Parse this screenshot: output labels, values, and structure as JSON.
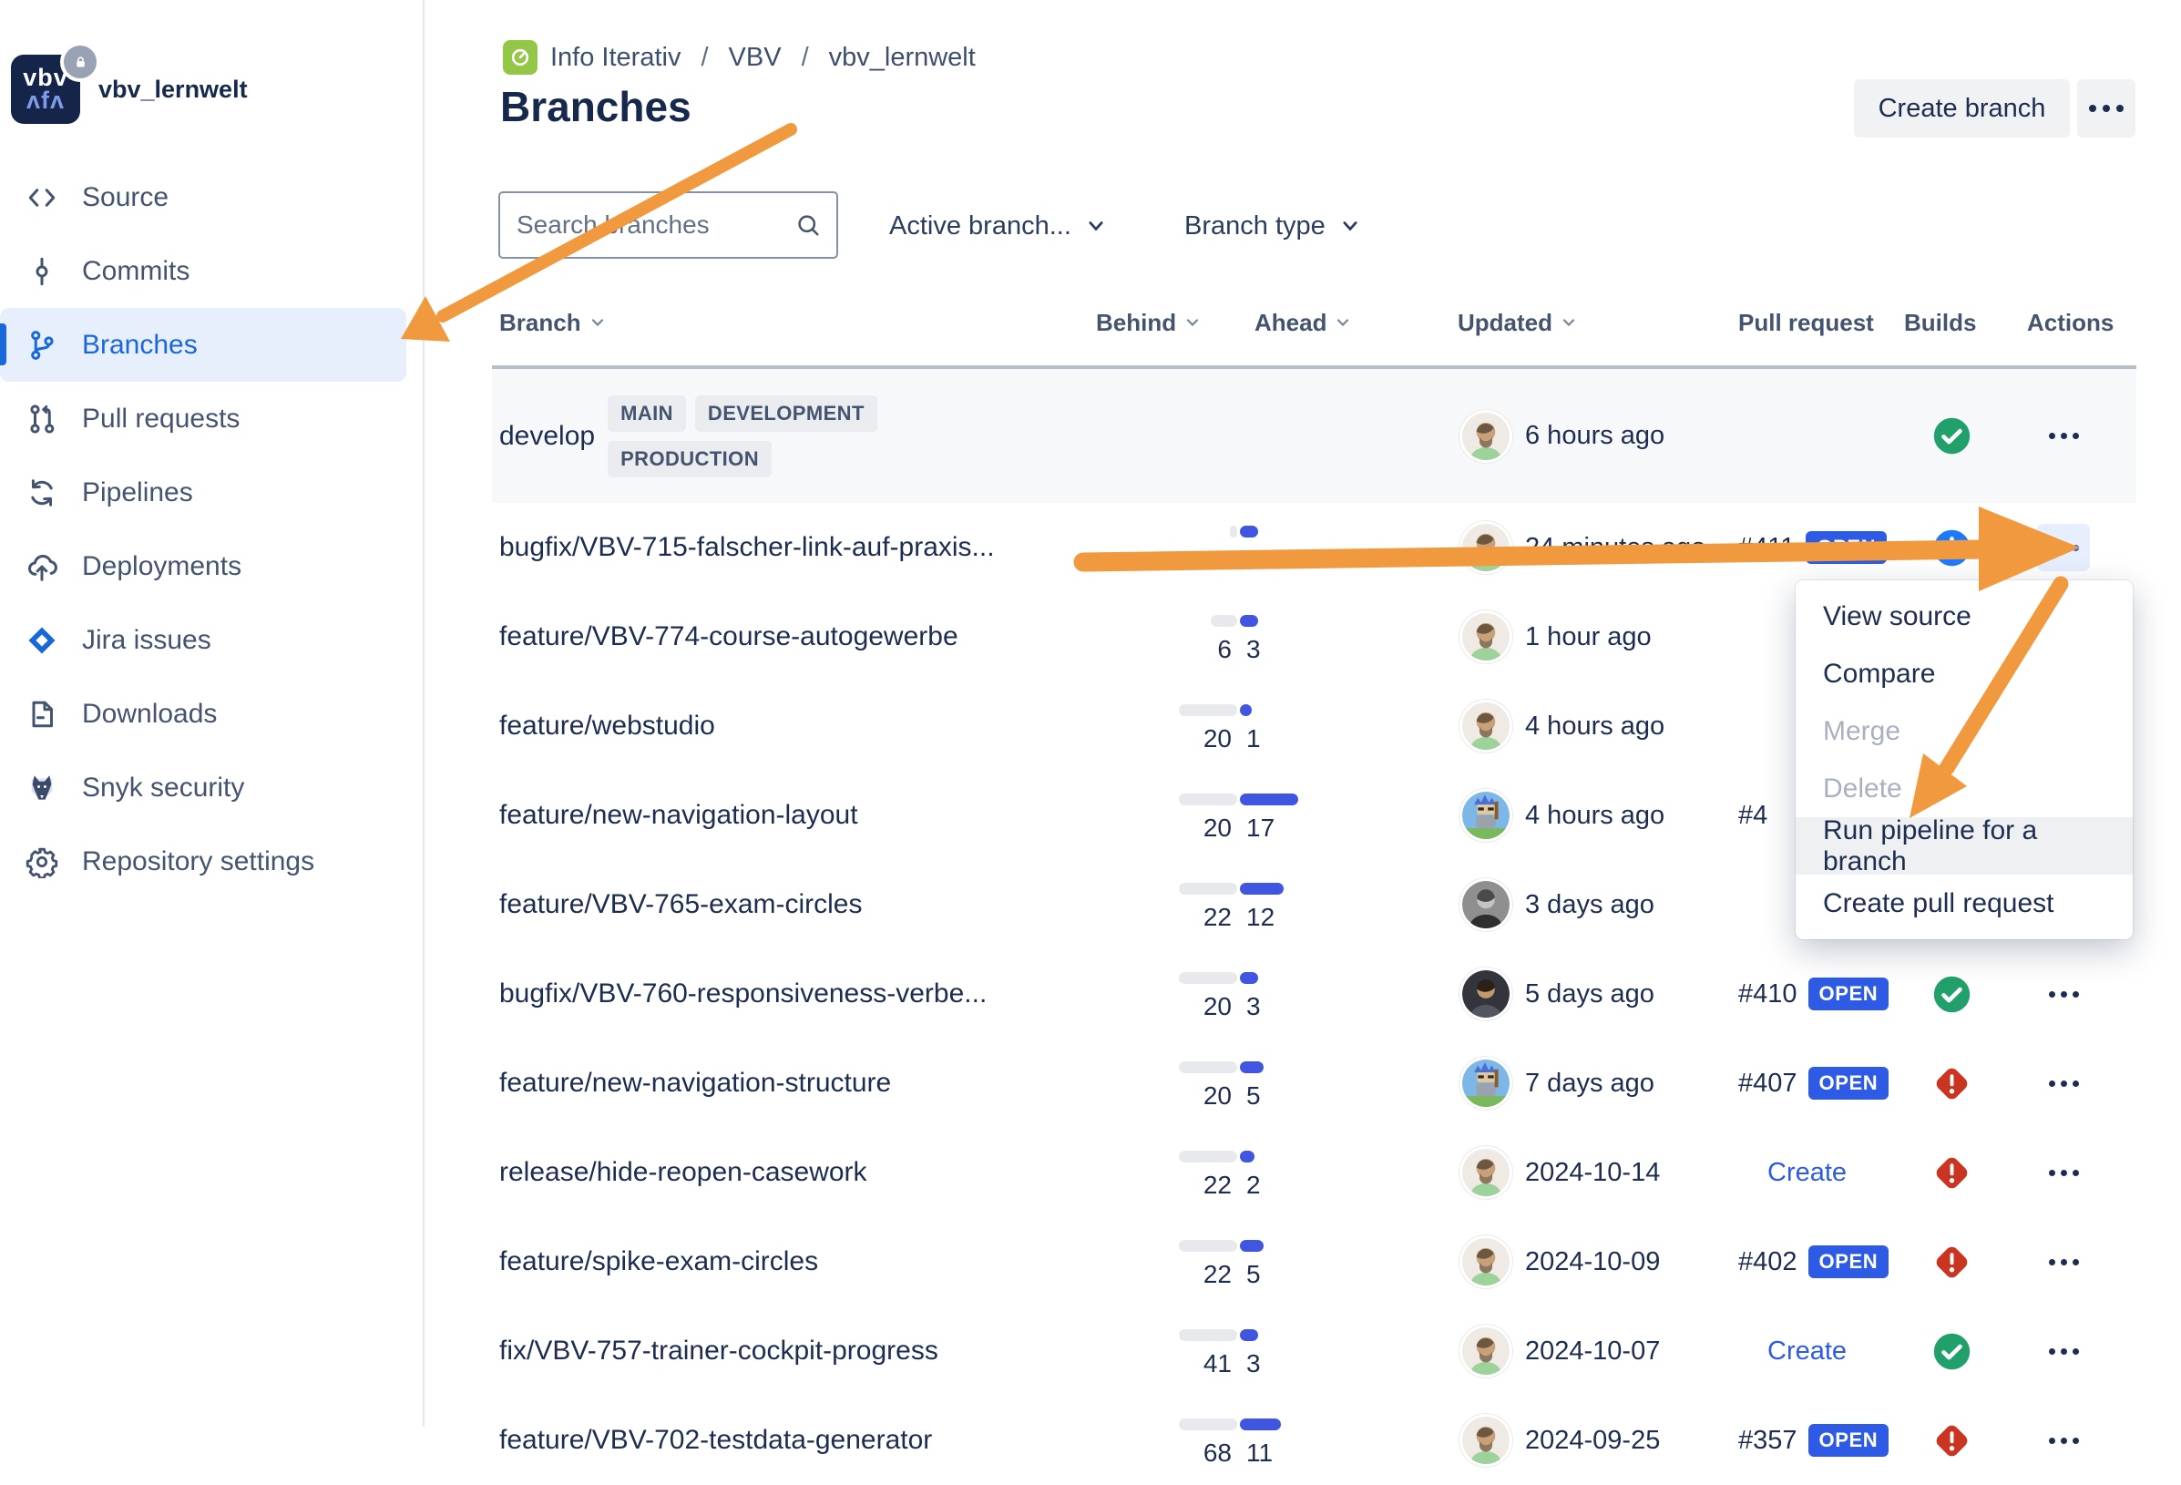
{
  "colors": {
    "selected_blue": "#1868DB",
    "open_badge_blue": "#2E5BE6",
    "success_green": "#22A06B",
    "error_red": "#CA3521",
    "inprogress_blue": "#1D7AFC",
    "annotation_orange": "#F0993E",
    "ahead_bar_blue": "#4156E0",
    "behind_bar_gray": "#E7E9ED",
    "project_avatar_green": "#94C748"
  },
  "sidebar": {
    "repo_name": "vbv_lernwelt",
    "logo": {
      "line1": "vbv",
      "line2": "ʌfʌ",
      "lock_icon": "lock-icon"
    },
    "items": [
      {
        "label": "Source",
        "icon": "source-icon",
        "selected": false
      },
      {
        "label": "Commits",
        "icon": "commits-icon",
        "selected": false
      },
      {
        "label": "Branches",
        "icon": "branches-icon",
        "selected": true
      },
      {
        "label": "Pull requests",
        "icon": "pull-requests-icon",
        "selected": false
      },
      {
        "label": "Pipelines",
        "icon": "pipelines-icon",
        "selected": false
      },
      {
        "label": "Deployments",
        "icon": "deployments-icon",
        "selected": false
      },
      {
        "label": "Jira issues",
        "icon": "jira-icon",
        "selected": false
      },
      {
        "label": "Downloads",
        "icon": "downloads-icon",
        "selected": false
      },
      {
        "label": "Snyk security",
        "icon": "snyk-icon",
        "selected": false
      },
      {
        "label": "Repository settings",
        "icon": "settings-icon",
        "selected": false
      }
    ]
  },
  "breadcrumb": {
    "items": [
      "Info Iterativ",
      "VBV",
      "vbv_lernwelt"
    ],
    "separator": "/"
  },
  "header": {
    "title": "Branches",
    "create_branch": "Create branch"
  },
  "filters": {
    "search_placeholder": "Search branches",
    "active_branches": "Active branch...",
    "branch_type": "Branch type"
  },
  "table": {
    "columns": [
      {
        "label": "Branch",
        "sortable": true
      },
      {
        "label": "Behind",
        "sortable": true
      },
      {
        "label": "Ahead",
        "sortable": true
      },
      {
        "label": "Updated",
        "sortable": true
      },
      {
        "label": "Pull request",
        "sortable": false
      },
      {
        "label": "Builds",
        "sortable": false
      },
      {
        "label": "Actions",
        "sortable": false
      }
    ],
    "develop": {
      "name": "develop",
      "badges": [
        "MAIN",
        "DEVELOPMENT",
        "PRODUCTION"
      ],
      "updated": "6 hours ago",
      "avatar": "man-beard",
      "build": "success"
    },
    "rows": [
      {
        "name": "bugfix/VBV-715-falscher-link-auf-praxis...",
        "behind": 0,
        "ahead": 3,
        "updated": "24 minutes ago",
        "avatar": "man-beard",
        "pr": {
          "style": "badge",
          "number": "#411",
          "status": "OPEN"
        },
        "build": "inprogress",
        "actions": "active"
      },
      {
        "name": "feature/VBV-774-course-autogewerbe",
        "behind": 6,
        "ahead": 3,
        "updated": "1 hour ago",
        "avatar": "man-beard",
        "pr": null,
        "build": null,
        "actions": null
      },
      {
        "name": "feature/webstudio",
        "behind": 20,
        "ahead": 1,
        "updated": "4 hours ago",
        "avatar": "man-beard",
        "pr": null,
        "build": null,
        "actions": null
      },
      {
        "name": "feature/new-navigation-layout",
        "behind": 20,
        "ahead": 17,
        "updated": "4 hours ago",
        "avatar": "pixel-knight",
        "pr": {
          "style": "partial",
          "number": "#4"
        },
        "build": null,
        "actions": null
      },
      {
        "name": "feature/VBV-765-exam-circles",
        "behind": 22,
        "ahead": 12,
        "updated": "3 days ago",
        "avatar": "man-bw",
        "pr": null,
        "build": null,
        "actions": null
      },
      {
        "name": "bugfix/VBV-760-responsiveness-verbe...",
        "behind": 20,
        "ahead": 3,
        "updated": "5 days ago",
        "avatar": "man-dark",
        "pr": {
          "style": "badge",
          "number": "#410",
          "status": "OPEN"
        },
        "build": "success",
        "actions": "dots"
      },
      {
        "name": "feature/new-navigation-structure",
        "behind": 20,
        "ahead": 5,
        "updated": "7 days ago",
        "avatar": "pixel-knight",
        "pr": {
          "style": "badge",
          "number": "#407",
          "status": "OPEN"
        },
        "build": "failed",
        "actions": "dots"
      },
      {
        "name": "release/hide-reopen-casework",
        "behind": 22,
        "ahead": 2,
        "updated": "2024-10-14",
        "avatar": "man-beard",
        "pr": {
          "style": "link",
          "label": "Create"
        },
        "build": "failed",
        "actions": "dots"
      },
      {
        "name": "feature/spike-exam-circles",
        "behind": 22,
        "ahead": 5,
        "updated": "2024-10-09",
        "avatar": "man-beard",
        "pr": {
          "style": "badge",
          "number": "#402",
          "status": "OPEN"
        },
        "build": "failed",
        "actions": "dots"
      },
      {
        "name": "fix/VBV-757-trainer-cockpit-progress",
        "behind": 41,
        "ahead": 3,
        "updated": "2024-10-07",
        "avatar": "man-beard",
        "pr": {
          "style": "link",
          "label": "Create"
        },
        "build": "success",
        "actions": "dots"
      },
      {
        "name": "feature/VBV-702-testdata-generator",
        "behind": 68,
        "ahead": 11,
        "updated": "2024-09-25",
        "avatar": "man-beard",
        "pr": {
          "style": "badge",
          "number": "#357",
          "status": "OPEN"
        },
        "build": "failed",
        "actions": "dots"
      }
    ]
  },
  "actions_menu": {
    "items": [
      {
        "label": "View source",
        "state": "normal"
      },
      {
        "label": "Compare",
        "state": "normal"
      },
      {
        "label": "Merge",
        "state": "disabled"
      },
      {
        "label": "Delete",
        "state": "disabled"
      },
      {
        "label": "Run pipeline for a branch",
        "state": "highlighted"
      },
      {
        "label": "Create pull request",
        "state": "normal"
      }
    ]
  }
}
